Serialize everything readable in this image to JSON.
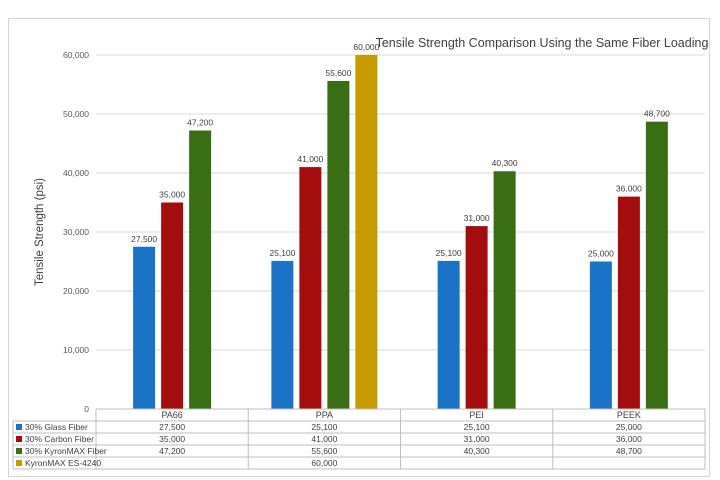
{
  "chart_data": {
    "type": "bar",
    "title": "Tensile Strength Comparison Using the Same Fiber Loading",
    "xlabel": "",
    "ylabel": "Tensile Strength (psi)",
    "ylim": [
      0,
      60000
    ],
    "yticks": [
      0,
      10000,
      20000,
      30000,
      40000,
      50000,
      60000
    ],
    "ytick_labels": [
      "0",
      "10,000",
      "20,000",
      "30,000",
      "40,000",
      "50,000",
      "60,000"
    ],
    "grid": true,
    "legend": "data-table",
    "categories": [
      "PA66",
      "PPA",
      "PEI",
      "PEEK"
    ],
    "series": [
      {
        "name": "30% Glass Fiber",
        "color": "#1a73c6",
        "values": [
          27500,
          25100,
          25100,
          25000
        ],
        "labels": [
          "27,500",
          "25,100",
          "25,100",
          "25,000"
        ]
      },
      {
        "name": "30% Carbon Fiber",
        "color": "#a30d0d",
        "values": [
          35000,
          41000,
          31000,
          36000
        ],
        "labels": [
          "35,000",
          "41,000",
          "31,000",
          "36,000"
        ]
      },
      {
        "name": "30% KyronMAX Fiber",
        "color": "#3a6e14",
        "values": [
          47200,
          55600,
          40300,
          48700
        ],
        "labels": [
          "47,200",
          "55,600",
          "40,300",
          "48,700"
        ]
      },
      {
        "name": "KyronMAX ES-4240",
        "color": "#c79a00",
        "values": [
          null,
          60000,
          null,
          null
        ],
        "labels": [
          "",
          "60,000",
          "",
          ""
        ]
      }
    ]
  }
}
